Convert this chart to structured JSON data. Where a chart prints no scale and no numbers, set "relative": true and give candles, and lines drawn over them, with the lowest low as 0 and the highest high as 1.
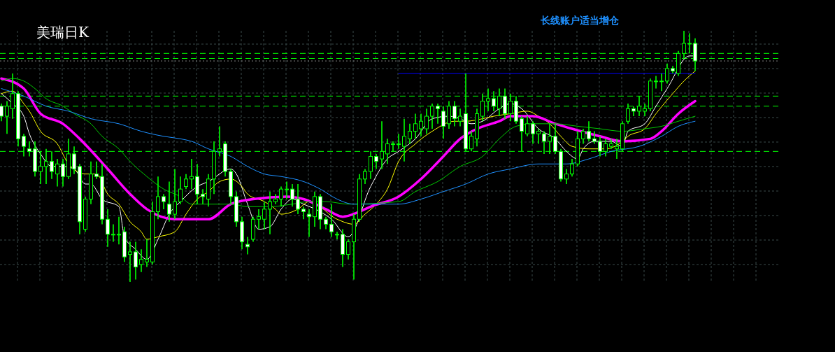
{
  "chart_data": {
    "type": "candlestick",
    "title": "美瑞日K",
    "relative": true,
    "grid": true,
    "legend": false,
    "annotations": [
      "长线账户适当增仓"
    ],
    "categories": [
      null,
      null,
      null,
      null,
      null,
      null,
      null,
      null,
      null,
      null,
      null,
      null,
      null,
      null,
      null,
      null,
      null,
      null,
      null,
      null,
      null,
      null,
      null,
      null,
      null,
      null,
      null,
      null,
      null,
      null,
      null,
      null,
      null,
      null,
      null,
      null,
      null,
      null,
      null,
      null,
      null,
      null,
      null,
      null,
      null,
      null,
      null,
      null,
      null,
      null,
      null,
      null,
      null,
      null,
      null,
      null,
      null,
      null,
      null,
      null,
      null,
      null,
      null,
      null,
      null,
      null,
      null,
      null,
      null,
      null,
      null,
      null,
      null,
      null,
      null,
      null,
      null,
      null,
      null,
      null,
      null,
      null,
      null,
      null,
      null,
      null,
      null,
      null,
      null,
      null,
      null,
      null,
      null,
      null,
      null,
      null,
      null,
      null,
      null,
      null,
      null,
      null,
      null,
      null,
      null,
      null,
      null,
      null,
      null,
      null,
      null,
      null,
      null,
      null,
      null,
      null,
      null,
      null,
      null,
      null,
      null,
      null,
      null,
      null,
      null
    ],
    "ohlc": [
      [
        0.7,
        0.71,
        0.64,
        0.66
      ],
      [
        0.66,
        0.72,
        0.59,
        0.7
      ],
      [
        0.69,
        0.83,
        0.65,
        0.75
      ],
      [
        0.75,
        0.76,
        0.54,
        0.57
      ],
      [
        0.58,
        0.59,
        0.5,
        0.54
      ],
      [
        0.53,
        0.56,
        0.5,
        0.52
      ],
      [
        0.53,
        0.56,
        0.42,
        0.44
      ],
      [
        0.44,
        0.52,
        0.39,
        0.46
      ],
      [
        0.46,
        0.53,
        0.39,
        0.48
      ],
      [
        0.48,
        0.52,
        0.41,
        0.44
      ],
      [
        0.43,
        0.49,
        0.38,
        0.47
      ],
      [
        0.47,
        0.49,
        0.38,
        0.42
      ],
      [
        0.42,
        0.57,
        0.41,
        0.51
      ],
      [
        0.51,
        0.54,
        0.43,
        0.45
      ],
      [
        0.46,
        0.47,
        0.19,
        0.24
      ],
      [
        0.21,
        0.34,
        0.2,
        0.33
      ],
      [
        0.33,
        0.48,
        0.31,
        0.43
      ],
      [
        0.43,
        0.48,
        0.41,
        0.42
      ],
      [
        0.42,
        0.47,
        0.23,
        0.25
      ],
      [
        0.25,
        0.29,
        0.14,
        0.19
      ],
      [
        0.19,
        0.23,
        0.16,
        0.19
      ],
      [
        0.19,
        0.26,
        0.15,
        0.19
      ],
      [
        0.2,
        0.22,
        0.08,
        0.1
      ],
      [
        0.11,
        0.16,
        0,
        0.12
      ],
      [
        0.12,
        0.16,
        0.01,
        0.06
      ],
      [
        0.07,
        0.13,
        0.04,
        0.09
      ],
      [
        0.08,
        0.17,
        0.06,
        0.09
      ],
      [
        0.08,
        0.32,
        0.07,
        0.28
      ],
      [
        0.28,
        0.42,
        0.25,
        0.34
      ],
      [
        0.34,
        0.35,
        0.29,
        0.32
      ],
      [
        0.31,
        0.4,
        0.24,
        0.27
      ],
      [
        0.27,
        0.45,
        0.25,
        0.32
      ],
      [
        0.32,
        0.42,
        0.31,
        0.37
      ],
      [
        0.38,
        0.43,
        0.37,
        0.41
      ],
      [
        0.41,
        0.49,
        0.37,
        0.42
      ],
      [
        0.42,
        0.47,
        0.31,
        0.35
      ],
      [
        0.35,
        0.37,
        0.31,
        0.34
      ],
      [
        0.33,
        0.43,
        0.3,
        0.41
      ],
      [
        0.41,
        0.56,
        0.35,
        0.52
      ],
      [
        0.52,
        0.62,
        0.5,
        0.53
      ],
      [
        0.55,
        0.56,
        0.42,
        0.44
      ],
      [
        0.44,
        0.45,
        0.31,
        0.34
      ],
      [
        0.34,
        0.36,
        0.22,
        0.24
      ],
      [
        0.24,
        0.26,
        0.13,
        0.16
      ],
      [
        0.15,
        0.18,
        0.11,
        0.14
      ],
      [
        0.17,
        0.26,
        0.16,
        0.25
      ],
      [
        0.25,
        0.29,
        0.21,
        0.26
      ],
      [
        0.25,
        0.32,
        0.21,
        0.29
      ],
      [
        0.29,
        0.36,
        0.19,
        0.32
      ],
      [
        0.32,
        0.35,
        0.31,
        0.33
      ],
      [
        0.33,
        0.38,
        0.3,
        0.37
      ],
      [
        0.37,
        0.4,
        0.33,
        0.37
      ],
      [
        0.37,
        0.39,
        0.3,
        0.33
      ],
      [
        0.33,
        0.39,
        0.27,
        0.29
      ],
      [
        0.29,
        0.3,
        0.25,
        0.28
      ],
      [
        0.27,
        0.29,
        0.18,
        0.26
      ],
      [
        0.26,
        0.36,
        0.22,
        0.34
      ],
      [
        0.34,
        0.35,
        0.21,
        0.25
      ],
      [
        0.25,
        0.26,
        0.21,
        0.23
      ],
      [
        0.23,
        0.31,
        0.18,
        0.2
      ],
      [
        0.19,
        0.2,
        0.17,
        0.19
      ],
      [
        0.19,
        0.21,
        0.06,
        0.11
      ],
      [
        0.11,
        0.17,
        0.09,
        0.16
      ],
      [
        0.16,
        0.27,
        0.01,
        0.25
      ],
      [
        0.25,
        0.43,
        0.24,
        0.41
      ],
      [
        0.41,
        0.45,
        0.39,
        0.44
      ],
      [
        0.44,
        0.52,
        0.41,
        0.5
      ],
      [
        0.5,
        0.51,
        0.45,
        0.48
      ],
      [
        0.49,
        0.64,
        0.45,
        0.52
      ],
      [
        0.51,
        0.57,
        0.47,
        0.55
      ],
      [
        0.55,
        0.56,
        0.52,
        0.55
      ],
      [
        0.55,
        0.59,
        0.53,
        0.55
      ],
      [
        0.54,
        0.65,
        0.48,
        0.58
      ],
      [
        0.57,
        0.63,
        0.55,
        0.6
      ],
      [
        0.6,
        0.67,
        0.57,
        0.63
      ],
      [
        0.61,
        0.67,
        0.58,
        0.64
      ],
      [
        0.61,
        0.69,
        0.59,
        0.66
      ],
      [
        0.66,
        0.71,
        0.61,
        0.7
      ],
      [
        0.7,
        0.71,
        0.63,
        0.69
      ],
      [
        0.68,
        0.7,
        0.57,
        0.62
      ],
      [
        0.63,
        0.72,
        0.61,
        0.7
      ],
      [
        0.7,
        0.72,
        0.62,
        0.65
      ],
      [
        0.64,
        0.69,
        0.62,
        0.66
      ],
      [
        0.67,
        0.83,
        0.52,
        0.53
      ],
      [
        0.53,
        0.6,
        0.52,
        0.58
      ],
      [
        0.57,
        0.69,
        0.54,
        0.67
      ],
      [
        0.66,
        0.75,
        0.64,
        0.72
      ],
      [
        0.72,
        0.77,
        0.68,
        0.73
      ],
      [
        0.73,
        0.76,
        0.68,
        0.7
      ],
      [
        0.69,
        0.77,
        0.66,
        0.74
      ],
      [
        0.74,
        0.77,
        0.65,
        0.67
      ],
      [
        0.67,
        0.75,
        0.64,
        0.72
      ],
      [
        0.72,
        0.74,
        0.63,
        0.64
      ],
      [
        0.65,
        0.66,
        0.52,
        0.6
      ],
      [
        0.59,
        0.66,
        0.58,
        0.63
      ],
      [
        0.63,
        0.64,
        0.55,
        0.59
      ],
      [
        0.59,
        0.61,
        0.55,
        0.6
      ],
      [
        0.59,
        0.6,
        0.51,
        0.56
      ],
      [
        0.56,
        0.63,
        0.51,
        0.58
      ],
      [
        0.58,
        0.63,
        0.51,
        0.52
      ],
      [
        0.52,
        0.53,
        0.4,
        0.41
      ],
      [
        0.41,
        0.45,
        0.39,
        0.43
      ],
      [
        0.43,
        0.49,
        0.42,
        0.47
      ],
      [
        0.47,
        0.6,
        0.46,
        0.57
      ],
      [
        0.57,
        0.61,
        0.55,
        0.6
      ],
      [
        0.6,
        0.64,
        0.56,
        0.57
      ],
      [
        0.57,
        0.6,
        0.55,
        0.56
      ],
      [
        0.56,
        0.58,
        0.5,
        0.52
      ],
      [
        0.52,
        0.57,
        0.5,
        0.55
      ],
      [
        0.54,
        0.57,
        0.53,
        0.55
      ],
      [
        0.53,
        0.57,
        0.49,
        0.54
      ],
      [
        0.53,
        0.64,
        0.52,
        0.63
      ],
      [
        0.64,
        0.71,
        0.63,
        0.69
      ],
      [
        0.69,
        0.7,
        0.66,
        0.68
      ],
      [
        0.68,
        0.74,
        0.66,
        0.7
      ],
      [
        0.68,
        0.71,
        0.66,
        0.69
      ],
      [
        0.69,
        0.81,
        0.68,
        0.8
      ],
      [
        0.8,
        0.82,
        0.77,
        0.8
      ],
      [
        0.8,
        0.83,
        0.76,
        0.8
      ],
      [
        0.8,
        0.87,
        0.79,
        0.85
      ],
      [
        0.85,
        0.86,
        0.83,
        0.84
      ],
      [
        0.83,
        0.92,
        0.82,
        0.91
      ],
      [
        0.91,
        1,
        0.89,
        0.95
      ],
      [
        0.95,
        0.99,
        0.91,
        0.95
      ],
      [
        0.95,
        0.97,
        0.84,
        0.88
      ]
    ],
    "color": "#00ff00",
    "series": [
      {
        "type": "line",
        "color": "#ffffff",
        "values": [
          0.75,
          null,
          0.71,
          null,
          0.66,
          0.59,
          null,
          0.51,
          null,
          0.46,
          null,
          0.46,
          null,
          0.45,
          null,
          0.39,
          0.39,
          null,
          0.33,
          null,
          null,
          0.3,
          0.18,
          null,
          0.13,
          null,
          0.09,
          null,
          0.17,
          null,
          0.27,
          null,
          0.32,
          null,
          null,
          0.38,
          null,
          0.4,
          null,
          null,
          null,
          0.45,
          0.43,
          null,
          0.31,
          null,
          0.21,
          null,
          0.22,
          null,
          0.29,
          null,
          0.33,
          null,
          0.31,
          null,
          null,
          0.28,
          null,
          0.25,
          null,
          null,
          0.18,
          null,
          null,
          null,
          0.38,
          null,
          null,
          0.49,
          null,
          0.52,
          null,
          null,
          0.57,
          null,
          null,
          0.65,
          null,
          null,
          0.66,
          null,
          0.65,
          null,
          0.63,
          null,
          0.64,
          null,
          null,
          0.69,
          null,
          0.71,
          null,
          0.69,
          null,
          null,
          0.61,
          null,
          null,
          0.57,
          null,
          0.52,
          null,
          0.49,
          0.53,
          null,
          0.56,
          null,
          null,
          0.56,
          null,
          0.54,
          0.6,
          null,
          null,
          0.63,
          null,
          0.7,
          null,
          0.77,
          null,
          null,
          null,
          0.9,
          0.9
        ]
      },
      {
        "type": "line",
        "color": "#ffff00",
        "values": [
          0.75,
          null,
          0.76,
          null,
          0.71,
          0.68,
          null,
          0.6,
          null,
          null,
          0.55,
          null,
          0.47,
          null,
          null,
          0.43,
          null,
          0.43,
          null,
          0.35,
          null,
          0.31,
          null,
          0.24,
          null,
          0.2,
          0.17,
          null,
          0.18,
          null,
          null,
          0.2,
          null,
          0.27,
          null,
          0.33,
          null,
          0.36,
          null,
          0.4,
          null,
          0.41,
          null,
          0.38,
          0.35,
          null,
          null,
          0.32,
          null,
          0.29,
          0.27,
          null,
          null,
          0.29,
          null,
          0.32,
          null,
          null,
          null,
          null,
          0.25,
          null,
          null,
          0.23,
          null,
          0.27,
          null,
          0.31,
          null,
          0.37,
          null,
          0.48,
          null,
          null,
          0.55,
          null,
          null,
          0.6,
          null,
          null,
          null,
          0.64,
          null,
          0.64,
          null,
          null,
          0.65,
          null,
          0.66,
          null,
          null,
          0.67,
          null,
          null,
          0.68,
          null,
          0.66,
          null,
          0.63,
          null,
          0.58,
          null,
          0.54,
          null,
          null,
          0.53,
          null,
          null,
          0.53,
          null,
          null,
          0.56,
          0.58,
          null,
          null,
          0.61,
          null,
          0.67,
          null,
          null,
          0.75,
          null,
          0.8,
          null,
          0.84
        ]
      },
      {
        "type": "line",
        "color": "#ff00ff",
        "values": [
          0.81,
          null,
          null,
          null,
          0.77,
          null,
          null,
          0.67,
          null,
          null,
          null,
          0.63,
          null,
          null,
          0.57,
          null,
          null,
          null,
          null,
          0.45,
          null,
          null,
          null,
          0.35,
          null,
          null,
          0.29,
          null,
          null,
          null,
          null,
          0.25,
          null,
          null,
          0.25,
          null,
          null,
          0.25,
          null,
          null,
          null,
          0.31,
          null,
          null,
          null,
          0.33,
          null,
          null,
          null,
          null,
          null,
          0.34,
          null,
          null,
          0.33,
          null,
          null,
          null,
          0.29,
          null,
          null,
          0.26,
          null,
          null,
          0.28,
          null,
          0.3,
          null,
          null,
          null,
          null,
          0.34,
          null,
          null,
          null,
          0.41,
          null,
          null,
          null,
          0.5,
          null,
          null,
          0.57,
          null,
          null,
          0.61,
          null,
          null,
          null,
          0.64,
          null,
          0.66,
          null,
          null,
          null,
          0.66,
          null,
          null,
          null,
          0.63,
          null,
          null,
          0.61,
          null,
          null,
          null,
          null,
          0.58,
          null,
          null,
          null,
          0.56,
          null,
          null,
          null,
          null,
          0.57,
          null,
          0.6,
          null,
          null,
          0.67,
          null,
          null,
          0.72
        ]
      },
      {
        "type": "line",
        "color": "#00c800",
        "values": [
          0.8,
          null,
          0.81,
          null,
          0.8,
          null,
          0.77,
          null,
          0.73,
          null,
          null,
          0.7,
          null,
          0.67,
          null,
          null,
          0.63,
          null,
          0.58,
          null,
          null,
          0.53,
          null,
          0.48,
          null,
          null,
          0.42,
          null,
          null,
          0.37,
          null,
          null,
          0.34,
          null,
          0.31,
          null,
          null,
          0.31,
          null,
          null,
          null,
          0.31,
          null,
          null,
          0.3,
          null,
          null,
          null,
          0.3,
          null,
          null,
          null,
          0.31,
          null,
          null,
          0.32,
          null,
          null,
          0.32,
          null,
          null,
          null,
          0.31,
          null,
          null,
          null,
          null,
          null,
          null,
          null,
          null,
          0.32,
          null,
          null,
          0.36,
          null,
          null,
          null,
          0.4,
          null,
          null,
          null,
          0.46,
          null,
          null,
          null,
          0.5,
          null,
          null,
          0.57,
          null,
          null,
          0.62,
          null,
          null,
          0.63,
          null,
          0.63,
          null,
          0.63,
          null,
          null,
          null,
          0.62,
          null,
          null,
          null,
          0.61,
          null,
          null,
          null,
          0.6,
          null,
          null,
          null,
          0.61,
          null,
          null,
          0.62,
          null,
          null,
          0.64,
          null,
          null,
          0.66
        ]
      },
      {
        "type": "line",
        "color": "#1e90ff",
        "values": [
          0.77,
          null,
          null,
          null,
          0.74,
          null,
          null,
          null,
          0.7,
          null,
          null,
          null,
          0.68,
          null,
          null,
          null,
          0.65,
          null,
          null,
          null,
          null,
          0.63,
          null,
          null,
          null,
          0.6,
          null,
          null,
          null,
          0.58,
          null,
          null,
          0.57,
          null,
          0.56,
          null,
          null,
          0.53,
          null,
          null,
          null,
          0.5,
          null,
          null,
          0.46,
          null,
          null,
          0.43,
          null,
          null,
          0.42,
          null,
          null,
          null,
          0.4,
          null,
          null,
          0.37,
          null,
          null,
          0.33,
          null,
          null,
          0.31,
          null,
          null,
          0.31,
          null,
          null,
          null,
          null,
          0.31,
          null,
          null,
          null,
          0.33,
          null,
          null,
          null,
          0.36,
          null,
          null,
          null,
          0.39,
          null,
          null,
          null,
          0.43,
          null,
          null,
          null,
          0.45,
          null,
          null,
          null,
          null,
          0.47,
          null,
          null,
          null,
          null,
          0.47,
          null,
          null,
          null,
          0.49,
          null,
          null,
          null,
          0.52,
          null,
          null,
          null,
          null,
          0.54,
          null,
          null,
          null,
          0.58,
          null,
          null,
          0.62,
          null,
          null,
          0.64
        ]
      },
      {
        "type": "line",
        "color": "#0000ff",
        "values": [
          null,
          null,
          null,
          null,
          null,
          null,
          null,
          null,
          null,
          null,
          null,
          null,
          null,
          null,
          null,
          null,
          null,
          null,
          null,
          null,
          null,
          null,
          null,
          null,
          null,
          null,
          null,
          null,
          null,
          null,
          null,
          null,
          null,
          null,
          null,
          null,
          null,
          null,
          null,
          null,
          null,
          null,
          null,
          null,
          null,
          null,
          null,
          null,
          null,
          null,
          null,
          null,
          null,
          null,
          null,
          null,
          null,
          null,
          null,
          null,
          null,
          null,
          null,
          null,
          null,
          null,
          null,
          null,
          null,
          null,
          null,
          0.83,
          null,
          null,
          null,
          null,
          null,
          null,
          null,
          null,
          null,
          null,
          null,
          null,
          null,
          null,
          null,
          null,
          null,
          null,
          null,
          null,
          null,
          null,
          null,
          null,
          null,
          null,
          null,
          null,
          null,
          null,
          null,
          null,
          null,
          null,
          null,
          null,
          null,
          null,
          null,
          null,
          null,
          null,
          null,
          null,
          null,
          null,
          null,
          null,
          null,
          null,
          null,
          null,
          0.83
        ]
      }
    ],
    "ref_lines": [
      {
        "axis": "y",
        "value": 0.91,
        "color": "#00ff00",
        "line_style": "dashed"
      },
      {
        "axis": "y",
        "value": 0.89,
        "color": "#00ff00",
        "line_style": "dashed"
      },
      {
        "axis": "y",
        "value": 0.88,
        "color": "#808080",
        "line_style": "dotted"
      },
      {
        "axis": "y",
        "value": 0.74,
        "color": "#00ff00",
        "line_style": "dashed"
      },
      {
        "axis": "y",
        "value": 0.7,
        "color": "#00ff00",
        "line_style": "dashed"
      },
      {
        "axis": "y",
        "value": 0.52,
        "color": "#00ff00",
        "line_style": "dashed"
      }
    ]
  }
}
